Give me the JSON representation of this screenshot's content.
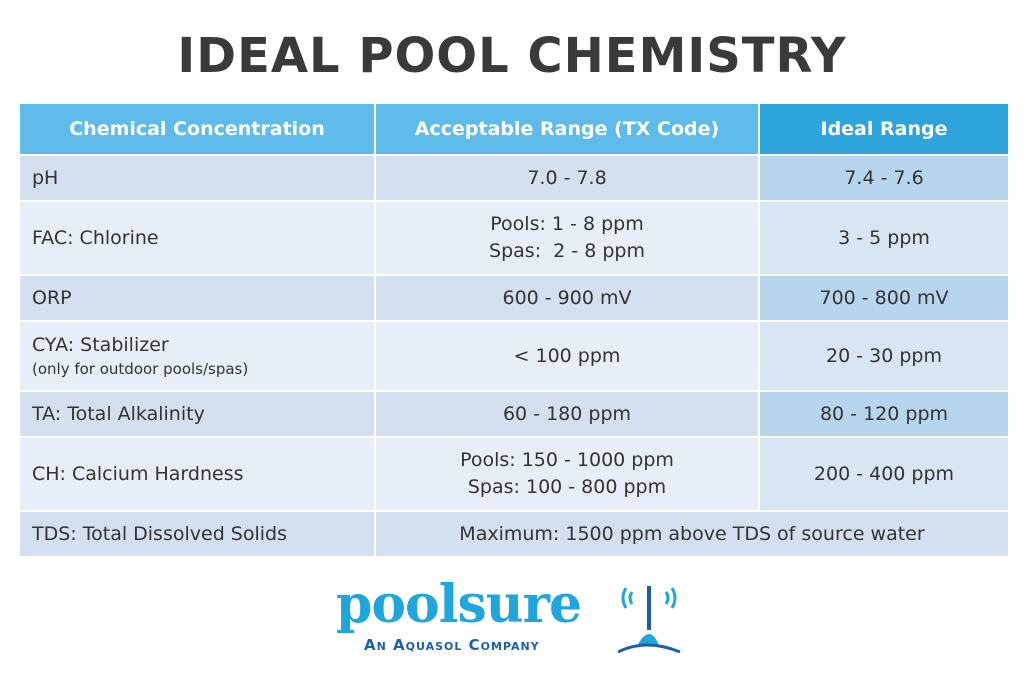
{
  "title": "IDEAL POOL CHEMISTRY",
  "table": {
    "headers": [
      "Chemical Concentration",
      "Acceptable Range (TX Code)",
      "Ideal Range"
    ],
    "rows": [
      {
        "name": "pH",
        "acceptable": [
          "7.0 - 7.8"
        ],
        "ideal": "7.4 - 7.6"
      },
      {
        "name": "FAC: Chlorine",
        "acceptable": [
          "Pools: 1 - 8 ppm",
          "Spas:  2 - 8 ppm"
        ],
        "ideal": "3 - 5 ppm"
      },
      {
        "name": "ORP",
        "acceptable": [
          "600 - 900 mV"
        ],
        "ideal": "700 - 800 mV"
      },
      {
        "name": "CYA: Stabilizer",
        "note": "(only for outdoor pools/spas)",
        "acceptable": [
          "< 100 ppm"
        ],
        "ideal": "20 - 30 ppm"
      },
      {
        "name": "TA: Total Alkalinity",
        "acceptable": [
          "60 - 180 ppm"
        ],
        "ideal": "80 - 120 ppm"
      },
      {
        "name": "CH: Calcium Hardness",
        "acceptable": [
          "Pools: 150 - 1000 ppm",
          "Spas: 100 - 800 ppm"
        ],
        "ideal": "200 - 400 ppm"
      },
      {
        "name": "TDS: Total Dissolved Solids",
        "merged": "Maximum: 1500 ppm above TDS of source water"
      }
    ]
  },
  "logo": {
    "wordmark": "poolsure",
    "tagline": "An Aquasol Company"
  },
  "colors": {
    "header": "#5fbbe9",
    "header_ideal": "#2ea4dd",
    "row_dark": "#d4e0f0",
    "row_light": "#e8eef7",
    "brand_blue": "#1fa6dd",
    "brand_navy": "#1a5fae"
  }
}
